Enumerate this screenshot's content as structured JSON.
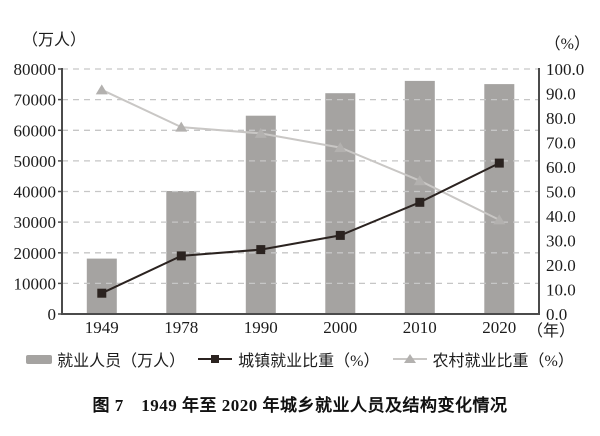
{
  "figure": {
    "caption": "图 7　1949 年至 2020 年城乡就业人员及结构变化情况"
  },
  "chart_data": {
    "type": "bar+line combo",
    "title": "图 7 1949 年至 2020 年城乡就业人员及结构变化情况",
    "categories": [
      "1949",
      "1978",
      "1990",
      "2000",
      "2010",
      "2020"
    ],
    "x_axis": {
      "unit_label": "（年）"
    },
    "left_axis": {
      "unit_label": "（万人）",
      "min": 0,
      "max": 80000,
      "tick_values": [
        0,
        10000,
        20000,
        30000,
        40000,
        50000,
        60000,
        70000,
        80000
      ],
      "tick_labels": [
        "0",
        "10000",
        "20000",
        "30000",
        "40000",
        "50000",
        "60000",
        "70000",
        "80000"
      ]
    },
    "right_axis": {
      "unit_label": "（%）",
      "min": 0,
      "max": 100,
      "tick_values": [
        0,
        10,
        20,
        30,
        40,
        50,
        60,
        70,
        80,
        90,
        100
      ],
      "tick_labels": [
        "0.0",
        "10.0",
        "20.0",
        "30.0",
        "40.0",
        "50.0",
        "60.0",
        "70.0",
        "80.0",
        "90.0",
        "100.0"
      ]
    },
    "grid": {
      "show": true,
      "color": "#c6c6c6",
      "style": "dashed"
    },
    "legend_position": "bottom",
    "axis_color": "#4b4b4b",
    "series": [
      {
        "name": "就业人员（万人）",
        "type": "bar",
        "axis": "left",
        "color": "#a5a3a1",
        "values": [
          18082,
          40152,
          64749,
          72085,
          76105,
          75064
        ]
      },
      {
        "name": "城镇就业比重（%）",
        "type": "line",
        "axis": "right",
        "color": "#2b2320",
        "marker": "square",
        "marker_color": "#2b2320",
        "values": [
          8.5,
          23.7,
          26.3,
          32.1,
          45.6,
          61.6
        ]
      },
      {
        "name": "农村就业比重（%）",
        "type": "line",
        "axis": "right",
        "color": "#c9c7c5",
        "marker": "triangle",
        "marker_color": "#b3b1af",
        "values": [
          91.5,
          76.3,
          73.7,
          67.9,
          54.4,
          38.4
        ]
      }
    ]
  }
}
